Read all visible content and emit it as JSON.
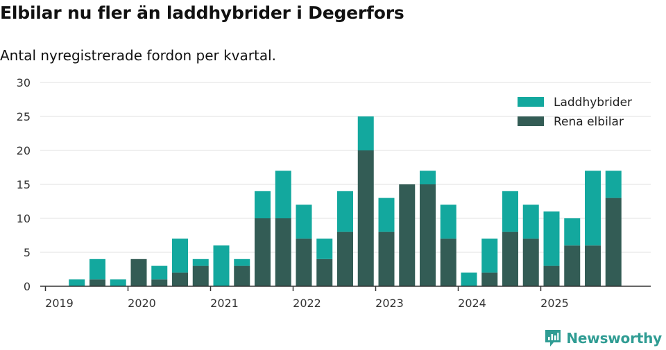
{
  "chart_data": {
    "type": "bar",
    "stacked": true,
    "title": "Elbilar nu fler än laddhybrider i Degerfors",
    "subtitle": "Antal nyregistrerade fordon per kvartal.",
    "xlabel": "",
    "ylabel": "",
    "ylim": [
      0,
      30
    ],
    "yticks": [
      0,
      5,
      10,
      15,
      20,
      25,
      30
    ],
    "year_labels": [
      "2019",
      "2020",
      "2021",
      "2022",
      "2023",
      "2024",
      "2025"
    ],
    "categories": [
      "2019 Q1",
      "2019 Q2",
      "2019 Q3",
      "2019 Q4",
      "2020 Q1",
      "2020 Q2",
      "2020 Q3",
      "2020 Q4",
      "2021 Q1",
      "2021 Q2",
      "2021 Q3",
      "2021 Q4",
      "2022 Q1",
      "2022 Q2",
      "2022 Q3",
      "2022 Q4",
      "2023 Q1",
      "2023 Q2",
      "2023 Q3",
      "2023 Q4",
      "2024 Q1",
      "2024 Q2",
      "2024 Q3",
      "2024 Q4",
      "2025 Q1",
      "2025 Q2",
      "2025 Q3",
      "2025 Q4"
    ],
    "series": [
      {
        "name": "Rena elbilar",
        "color": "#335c55",
        "values": [
          0,
          0,
          1,
          0,
          4,
          1,
          2,
          3,
          0,
          3,
          10,
          10,
          7,
          4,
          8,
          20,
          8,
          15,
          15,
          7,
          0,
          2,
          8,
          7,
          3,
          6,
          6,
          13
        ]
      },
      {
        "name": "Laddhybrider",
        "color": "#13a89e",
        "values": [
          0,
          1,
          3,
          1,
          0,
          2,
          5,
          1,
          6,
          1,
          4,
          7,
          5,
          3,
          6,
          5,
          5,
          0,
          2,
          5,
          2,
          5,
          6,
          5,
          8,
          4,
          11,
          4
        ]
      }
    ],
    "legend": [
      {
        "name": "Laddhybrider",
        "color": "#13a89e"
      },
      {
        "name": "Rena elbilar",
        "color": "#335c55"
      }
    ],
    "legend_position": "top-right",
    "grid": true
  },
  "brand": {
    "name": "Newsworthy",
    "color": "#2f9c93"
  }
}
